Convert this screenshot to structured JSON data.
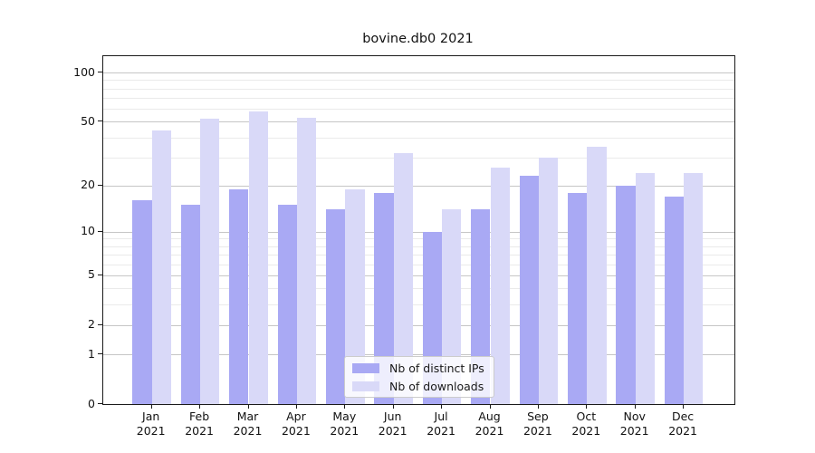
{
  "title": "bovine.db0 2021",
  "chart_data": {
    "type": "bar",
    "title": "bovine.db0 2021",
    "x_categories": [
      "Jan",
      "Feb",
      "Mar",
      "Apr",
      "May",
      "Jun",
      "Jul",
      "Aug",
      "Sep",
      "Oct",
      "Nov",
      "Dec"
    ],
    "x_year": "2021",
    "series": [
      {
        "name": "Nb of distinct IPs",
        "color": "#a9a9f4",
        "values": [
          16,
          15,
          19,
          15,
          14,
          18,
          10,
          14,
          23,
          18,
          20,
          17
        ]
      },
      {
        "name": "Nb of downloads",
        "color": "#d9d9f8",
        "values": [
          44,
          52,
          58,
          53,
          19,
          32,
          14,
          26,
          30,
          35,
          24,
          24
        ]
      }
    ],
    "yscale": "log1p",
    "ylim": [
      0,
      124
    ],
    "yticks": [
      100,
      50,
      20,
      10,
      5,
      2,
      1,
      0
    ],
    "yticks_minor": [
      90,
      80,
      70,
      60,
      40,
      30,
      9,
      8,
      7,
      6,
      4,
      3
    ],
    "grid": true,
    "legend_position": "lower-center-inside",
    "xlabel": "",
    "ylabel": ""
  },
  "colors": {
    "background": "#ffffff",
    "axis": "#1a1a1a",
    "grid_major": "#c6c6c6",
    "grid_minor": "#eaeaea",
    "text": "#111111"
  }
}
